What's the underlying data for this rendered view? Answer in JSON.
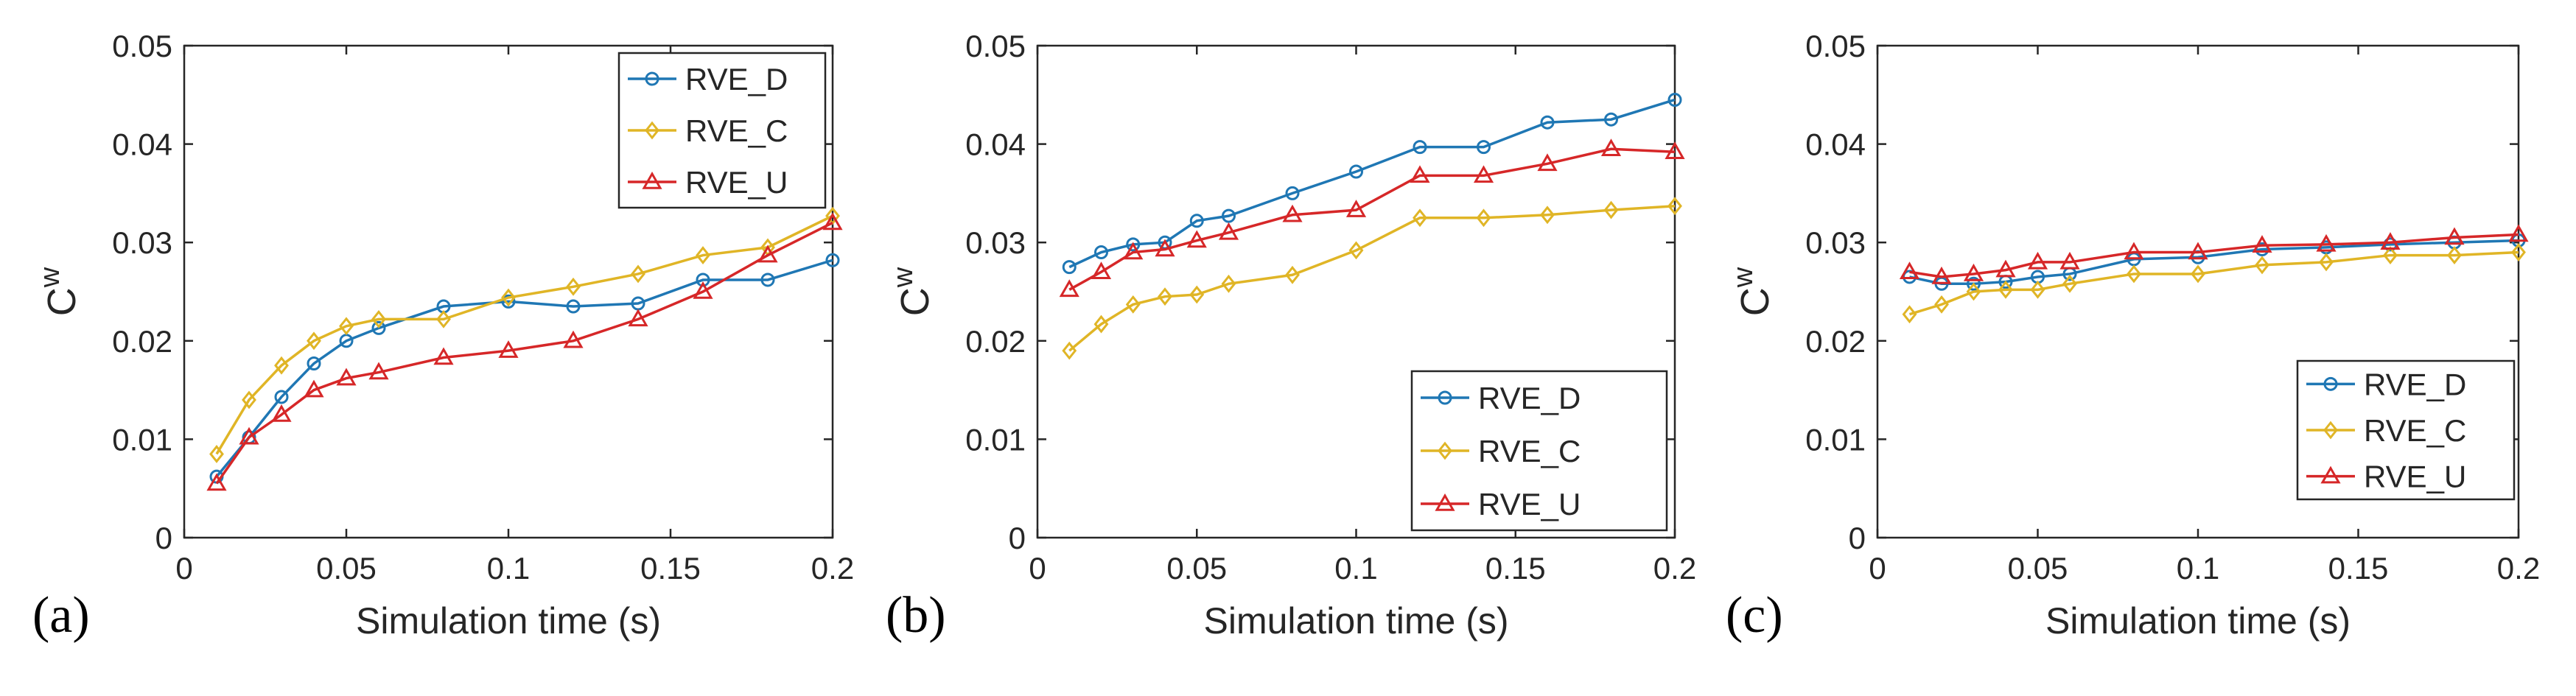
{
  "chart_data": [
    {
      "type": "line",
      "panel_label": "(a)",
      "xlabel": "Simulation time (s)",
      "ylabel": "C",
      "ylabel_sup": "w",
      "xlim": [
        0,
        0.2
      ],
      "ylim": [
        0,
        0.05
      ],
      "xticks": [
        "0",
        "0.05",
        "0.1",
        "0.15",
        "0.2"
      ],
      "yticks": [
        "0",
        "0.01",
        "0.02",
        "0.03",
        "0.04",
        "0.05"
      ],
      "legend_position": "top-right",
      "x": [
        0.01,
        0.02,
        0.03,
        0.04,
        0.05,
        0.06,
        0.08,
        0.1,
        0.12,
        0.14,
        0.16,
        0.18,
        0.2
      ],
      "series": [
        {
          "name": "RVE_D",
          "values": [
            0.0062,
            0.0102,
            0.0143,
            0.0177,
            0.02,
            0.0213,
            0.0235,
            0.024,
            0.0235,
            0.0238,
            0.0262,
            0.0262,
            0.0282
          ]
        },
        {
          "name": "RVE_C",
          "values": [
            0.0085,
            0.014,
            0.0175,
            0.02,
            0.0215,
            0.0222,
            0.0222,
            0.0244,
            0.0255,
            0.0268,
            0.0287,
            0.0295,
            0.0327
          ]
        },
        {
          "name": "RVE_U",
          "values": [
            0.0055,
            0.0102,
            0.0125,
            0.015,
            0.0162,
            0.0168,
            0.0183,
            0.019,
            0.02,
            0.0222,
            0.025,
            0.0287,
            0.032
          ]
        }
      ]
    },
    {
      "type": "line",
      "panel_label": "(b)",
      "xlabel": "Simulation time (s)",
      "ylabel": "C",
      "ylabel_sup": "w",
      "xlim": [
        0,
        0.2
      ],
      "ylim": [
        0,
        0.05
      ],
      "xticks": [
        "0",
        "0.05",
        "0.1",
        "0.15",
        "0.2"
      ],
      "yticks": [
        "0",
        "0.01",
        "0.02",
        "0.03",
        "0.04",
        "0.05"
      ],
      "legend_position": "bottom-right",
      "x": [
        0.01,
        0.02,
        0.03,
        0.04,
        0.05,
        0.06,
        0.08,
        0.1,
        0.12,
        0.14,
        0.16,
        0.18,
        0.2
      ],
      "series": [
        {
          "name": "RVE_D",
          "values": [
            0.0275,
            0.029,
            0.0298,
            0.03,
            0.0322,
            0.0327,
            0.035,
            0.0372,
            0.0397,
            0.0397,
            0.0422,
            0.0425,
            0.0445
          ]
        },
        {
          "name": "RVE_C",
          "values": [
            0.019,
            0.0217,
            0.0237,
            0.0245,
            0.0247,
            0.0258,
            0.0267,
            0.0292,
            0.0325,
            0.0325,
            0.0328,
            0.0333,
            0.0337
          ]
        },
        {
          "name": "RVE_U",
          "values": [
            0.0252,
            0.027,
            0.029,
            0.0293,
            0.0302,
            0.031,
            0.0328,
            0.0333,
            0.0368,
            0.0368,
            0.038,
            0.0395,
            0.0392
          ]
        }
      ]
    },
    {
      "type": "line",
      "panel_label": "(c)",
      "xlabel": "Simulation time (s)",
      "ylabel": "C",
      "ylabel_sup": "w",
      "xlim": [
        0,
        0.2
      ],
      "ylim": [
        0,
        0.05
      ],
      "xticks": [
        "0",
        "0.05",
        "0.1",
        "0.15",
        "0.2"
      ],
      "yticks": [
        "0",
        "0.01",
        "0.02",
        "0.03",
        "0.04",
        "0.05"
      ],
      "legend_position": "bottom-right",
      "x": [
        0.01,
        0.02,
        0.03,
        0.04,
        0.05,
        0.06,
        0.08,
        0.1,
        0.12,
        0.14,
        0.16,
        0.18,
        0.2
      ],
      "series": [
        {
          "name": "RVE_D",
          "values": [
            0.0265,
            0.0258,
            0.0258,
            0.026,
            0.0265,
            0.0268,
            0.0283,
            0.0285,
            0.0293,
            0.0295,
            0.0298,
            0.03,
            0.0302
          ]
        },
        {
          "name": "RVE_C",
          "values": [
            0.0227,
            0.0237,
            0.025,
            0.0252,
            0.0252,
            0.0258,
            0.0268,
            0.0268,
            0.0277,
            0.028,
            0.0287,
            0.0287,
            0.029
          ]
        },
        {
          "name": "RVE_U",
          "values": [
            0.027,
            0.0265,
            0.0268,
            0.0272,
            0.028,
            0.028,
            0.029,
            0.029,
            0.0297,
            0.0298,
            0.03,
            0.0305,
            0.0308
          ]
        }
      ]
    }
  ],
  "colors": {
    "RVE_D": "#1f77b4",
    "RVE_C": "#e0b526",
    "RVE_U": "#d62728",
    "axis": "#262626",
    "background": "#ffffff"
  },
  "markers": {
    "RVE_D": "circle",
    "RVE_C": "diamond",
    "RVE_U": "triangle"
  }
}
